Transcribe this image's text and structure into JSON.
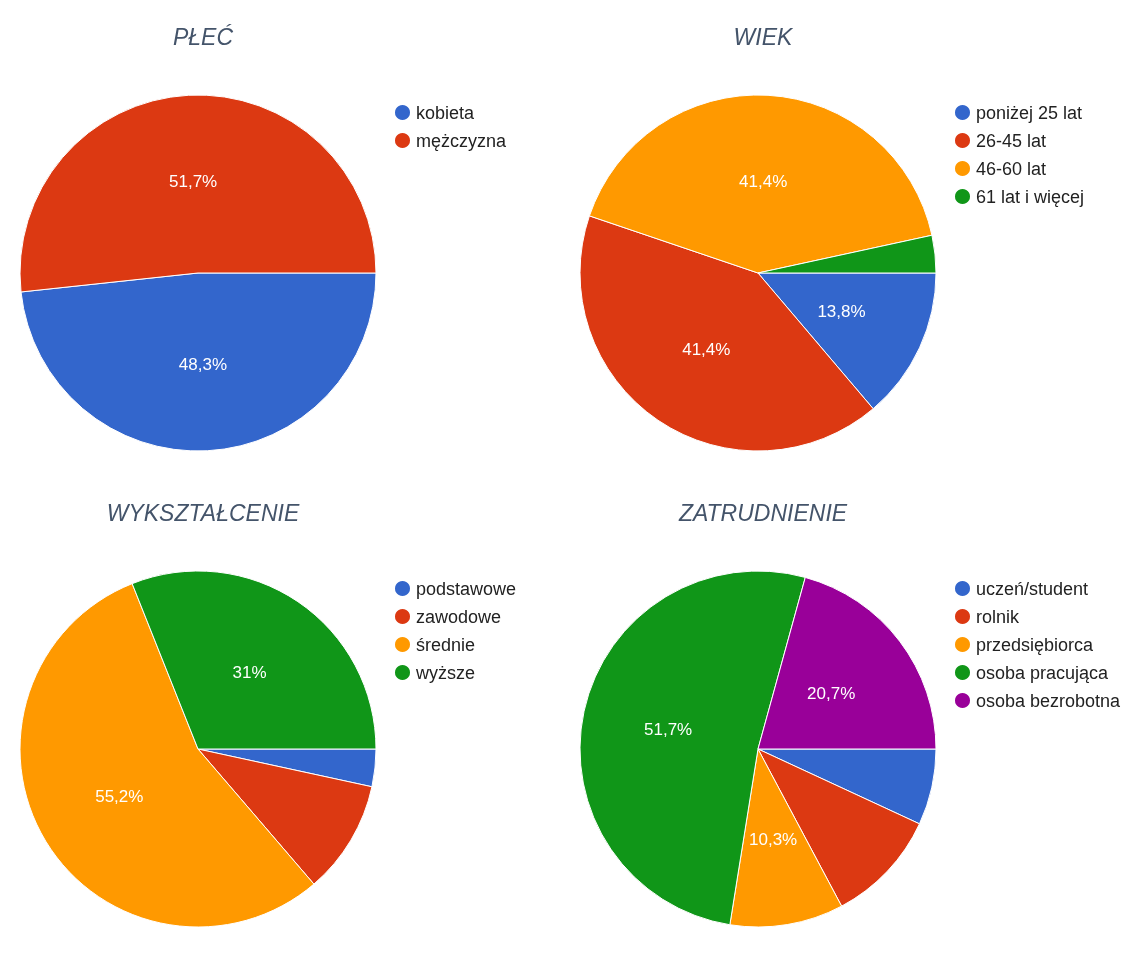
{
  "chart_data": [
    {
      "type": "pie",
      "title": "PŁEĆ",
      "categories": [
        "kobieta",
        "mężczyzna"
      ],
      "values": [
        48.3,
        51.7
      ],
      "colors": [
        "#3366cc",
        "#dc3912"
      ],
      "value_labels": [
        "48,3%",
        "51,7%"
      ],
      "legend": "right"
    },
    {
      "type": "pie",
      "title": "WIEK",
      "categories": [
        "poniżej 25 lat",
        "26-45 lat",
        "46-60 lat",
        "61 lat i więcej"
      ],
      "values": [
        13.8,
        41.4,
        41.4,
        3.4
      ],
      "colors": [
        "#3366cc",
        "#dc3912",
        "#ff9900",
        "#109618"
      ],
      "value_labels": [
        "13,8%",
        "41,4%",
        "41,4%",
        null
      ],
      "legend": "right"
    },
    {
      "type": "pie",
      "title": "WYKSZTAŁCENIE",
      "categories": [
        "podstawowe",
        "zawodowe",
        "średnie",
        "wyższe"
      ],
      "values": [
        3.4,
        10.3,
        55.2,
        31
      ],
      "colors": [
        "#3366cc",
        "#dc3912",
        "#ff9900",
        "#109618"
      ],
      "value_labels": [
        null,
        null,
        "55,2%",
        "31%"
      ],
      "legend": "right"
    },
    {
      "type": "pie",
      "title": "ZATRUDNIENIE",
      "categories": [
        "uczeń/student",
        "rolnik",
        "przedsiębiorca",
        "osoba pracująca",
        "osoba bezrobotna"
      ],
      "values": [
        6.9,
        10.3,
        10.3,
        51.7,
        20.7
      ],
      "colors": [
        "#3366cc",
        "#dc3912",
        "#ff9900",
        "#109618",
        "#990099"
      ],
      "value_labels": [
        null,
        null,
        "10,3%",
        "51,7%",
        "20,7%"
      ],
      "legend": "right"
    }
  ]
}
